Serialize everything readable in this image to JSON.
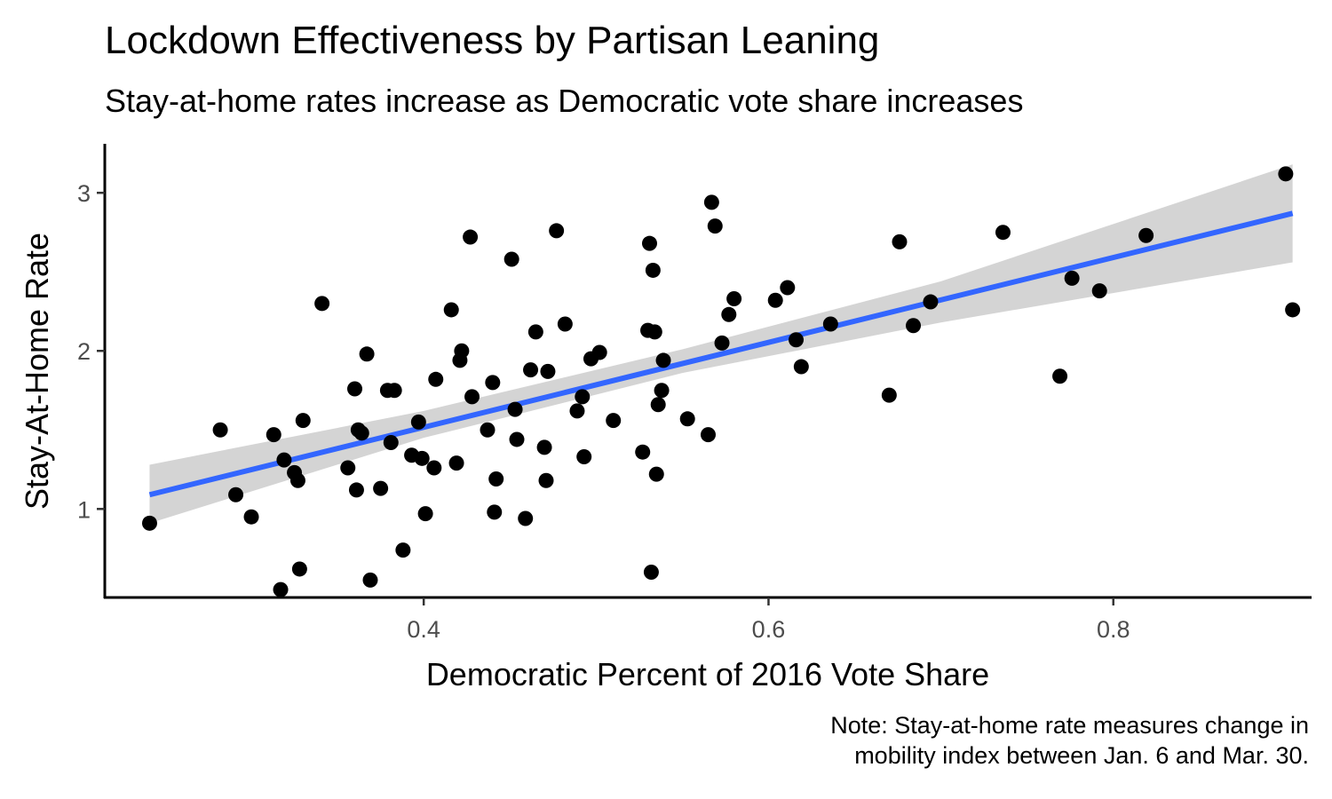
{
  "chart_data": {
    "type": "scatter",
    "title": "Lockdown Effectiveness by Partisan Leaning",
    "subtitle": "Stay-at-home rates increase as Democratic vote share increases",
    "xlabel": "Democratic Percent of 2016 Vote Share",
    "ylabel": "Stay-At-Home Rate",
    "caption_lines": [
      "Note: Stay-at-home rate measures change in",
      "mobility index between Jan. 6 and Mar. 30."
    ],
    "xlim": [
      0.215,
      0.915
    ],
    "ylim": [
      0.44,
      3.31
    ],
    "x_ticks": [
      0.4,
      0.6,
      0.8
    ],
    "x_tick_labels": [
      "0.4",
      "0.6",
      "0.8"
    ],
    "y_ticks": [
      1,
      2,
      3
    ],
    "y_tick_labels": [
      "1",
      "2",
      "3"
    ],
    "grid": false,
    "colors": {
      "points": "#000000",
      "fit_line": "#3366ff",
      "confidence_band": "#cccccc"
    },
    "points": [
      {
        "x": 0.241,
        "y": 0.91
      },
      {
        "x": 0.282,
        "y": 1.5
      },
      {
        "x": 0.291,
        "y": 1.09
      },
      {
        "x": 0.3,
        "y": 0.95
      },
      {
        "x": 0.313,
        "y": 1.47
      },
      {
        "x": 0.317,
        "y": 0.49
      },
      {
        "x": 0.319,
        "y": 1.31
      },
      {
        "x": 0.325,
        "y": 1.23
      },
      {
        "x": 0.327,
        "y": 1.18
      },
      {
        "x": 0.328,
        "y": 0.62
      },
      {
        "x": 0.33,
        "y": 1.56
      },
      {
        "x": 0.341,
        "y": 2.3
      },
      {
        "x": 0.356,
        "y": 1.26
      },
      {
        "x": 0.36,
        "y": 1.76
      },
      {
        "x": 0.361,
        "y": 1.12
      },
      {
        "x": 0.362,
        "y": 1.5
      },
      {
        "x": 0.364,
        "y": 1.48
      },
      {
        "x": 0.367,
        "y": 1.98
      },
      {
        "x": 0.369,
        "y": 0.55
      },
      {
        "x": 0.375,
        "y": 1.13
      },
      {
        "x": 0.379,
        "y": 1.75
      },
      {
        "x": 0.381,
        "y": 1.42
      },
      {
        "x": 0.383,
        "y": 1.75
      },
      {
        "x": 0.388,
        "y": 0.74
      },
      {
        "x": 0.393,
        "y": 1.34
      },
      {
        "x": 0.397,
        "y": 1.55
      },
      {
        "x": 0.399,
        "y": 1.32
      },
      {
        "x": 0.401,
        "y": 0.97
      },
      {
        "x": 0.406,
        "y": 1.26
      },
      {
        "x": 0.407,
        "y": 1.82
      },
      {
        "x": 0.416,
        "y": 2.26
      },
      {
        "x": 0.419,
        "y": 1.29
      },
      {
        "x": 0.421,
        "y": 1.94
      },
      {
        "x": 0.422,
        "y": 2.0
      },
      {
        "x": 0.427,
        "y": 2.72
      },
      {
        "x": 0.428,
        "y": 1.71
      },
      {
        "x": 0.437,
        "y": 1.5
      },
      {
        "x": 0.44,
        "y": 1.8
      },
      {
        "x": 0.441,
        "y": 0.98
      },
      {
        "x": 0.442,
        "y": 1.19
      },
      {
        "x": 0.451,
        "y": 2.58
      },
      {
        "x": 0.453,
        "y": 1.63
      },
      {
        "x": 0.454,
        "y": 1.44
      },
      {
        "x": 0.459,
        "y": 0.94
      },
      {
        "x": 0.462,
        "y": 1.88
      },
      {
        "x": 0.465,
        "y": 2.12
      },
      {
        "x": 0.47,
        "y": 1.39
      },
      {
        "x": 0.471,
        "y": 1.18
      },
      {
        "x": 0.472,
        "y": 1.87
      },
      {
        "x": 0.477,
        "y": 2.76
      },
      {
        "x": 0.482,
        "y": 2.17
      },
      {
        "x": 0.489,
        "y": 1.62
      },
      {
        "x": 0.492,
        "y": 1.71
      },
      {
        "x": 0.493,
        "y": 1.33
      },
      {
        "x": 0.497,
        "y": 1.95
      },
      {
        "x": 0.502,
        "y": 1.99
      },
      {
        "x": 0.51,
        "y": 1.56
      },
      {
        "x": 0.527,
        "y": 1.36
      },
      {
        "x": 0.53,
        "y": 2.13
      },
      {
        "x": 0.531,
        "y": 2.68
      },
      {
        "x": 0.532,
        "y": 0.6
      },
      {
        "x": 0.533,
        "y": 2.51
      },
      {
        "x": 0.534,
        "y": 2.12
      },
      {
        "x": 0.535,
        "y": 1.22
      },
      {
        "x": 0.536,
        "y": 1.66
      },
      {
        "x": 0.538,
        "y": 1.75
      },
      {
        "x": 0.539,
        "y": 1.94
      },
      {
        "x": 0.553,
        "y": 1.57
      },
      {
        "x": 0.565,
        "y": 1.47
      },
      {
        "x": 0.567,
        "y": 2.94
      },
      {
        "x": 0.569,
        "y": 2.79
      },
      {
        "x": 0.573,
        "y": 2.05
      },
      {
        "x": 0.577,
        "y": 2.23
      },
      {
        "x": 0.58,
        "y": 2.33
      },
      {
        "x": 0.604,
        "y": 2.32
      },
      {
        "x": 0.611,
        "y": 2.4
      },
      {
        "x": 0.616,
        "y": 2.07
      },
      {
        "x": 0.619,
        "y": 1.9
      },
      {
        "x": 0.636,
        "y": 2.17
      },
      {
        "x": 0.67,
        "y": 1.72
      },
      {
        "x": 0.676,
        "y": 2.69
      },
      {
        "x": 0.684,
        "y": 2.16
      },
      {
        "x": 0.694,
        "y": 2.31
      },
      {
        "x": 0.736,
        "y": 2.75
      },
      {
        "x": 0.769,
        "y": 1.84
      },
      {
        "x": 0.776,
        "y": 2.46
      },
      {
        "x": 0.792,
        "y": 2.38
      },
      {
        "x": 0.819,
        "y": 2.73
      },
      {
        "x": 0.9,
        "y": 3.12
      },
      {
        "x": 0.904,
        "y": 2.26
      }
    ],
    "fit_line": [
      {
        "x": 0.241,
        "y": 1.09
      },
      {
        "x": 0.904,
        "y": 2.87
      }
    ],
    "confidence_band": [
      {
        "x": 0.241,
        "lo": 0.91,
        "hi": 1.28
      },
      {
        "x": 0.4,
        "lo": 1.45,
        "hi": 1.62
      },
      {
        "x": 0.55,
        "lo": 1.86,
        "hi": 2.01
      },
      {
        "x": 0.7,
        "lo": 2.18,
        "hi": 2.44
      },
      {
        "x": 0.904,
        "lo": 2.56,
        "hi": 3.18
      }
    ]
  }
}
